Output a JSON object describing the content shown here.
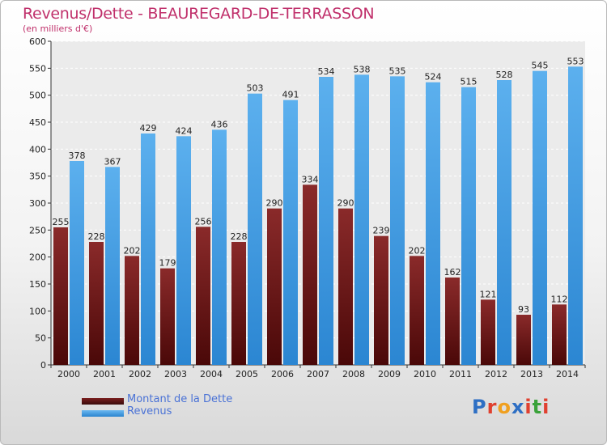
{
  "title": "Revenus/Dette - BEAUREGARD-DE-TERRASSON",
  "subtitle": "(en milliers d'€)",
  "colors": {
    "dette": "#7a1f1f",
    "revenus": "#47a3e6",
    "title": "#c0306b",
    "legend_text": "#4a72d6"
  },
  "logo": {
    "text": "Proxiti",
    "letters": [
      "P",
      "r",
      "o",
      "x",
      "i",
      "t",
      "i"
    ],
    "colors": [
      "#2e6fc4",
      "#e0402f",
      "#f0a020",
      "#2e6fc4",
      "#e0402f",
      "#3aa23a",
      "#e0402f"
    ]
  },
  "legend": [
    {
      "label": "Montant de la Dette"
    },
    {
      "label": "Revenus"
    }
  ],
  "chart_data": {
    "type": "bar",
    "categories": [
      "2000",
      "2001",
      "2002",
      "2003",
      "2004",
      "2005",
      "2006",
      "2007",
      "2008",
      "2009",
      "2010",
      "2011",
      "2012",
      "2013",
      "2014"
    ],
    "series": [
      {
        "name": "Montant de la Dette",
        "values": [
          255,
          228,
          202,
          179,
          256,
          228,
          290,
          334,
          290,
          239,
          202,
          162,
          121,
          93,
          112
        ]
      },
      {
        "name": "Revenus",
        "values": [
          378,
          367,
          429,
          424,
          436,
          503,
          491,
          534,
          538,
          535,
          524,
          515,
          528,
          545,
          553
        ]
      }
    ],
    "yticks": [
      0,
      50,
      100,
      150,
      200,
      250,
      300,
      350,
      400,
      450,
      500,
      550,
      600
    ],
    "ylim": [
      0,
      600
    ],
    "grid": true,
    "legend_position": "bottom-left"
  }
}
